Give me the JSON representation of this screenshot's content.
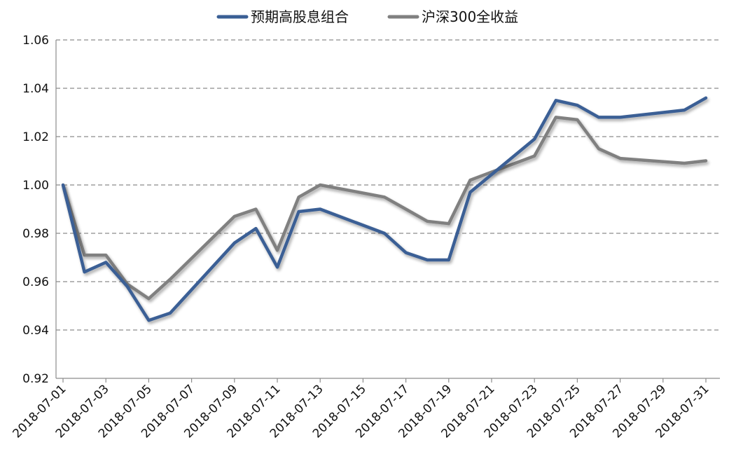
{
  "chart_data": {
    "type": "line",
    "title": "",
    "xlabel": "",
    "ylabel": "",
    "ylim": [
      0.92,
      1.06
    ],
    "yticks": [
      "0.92",
      "0.94",
      "0.96",
      "0.98",
      "1.00",
      "1.02",
      "1.04",
      "1.06"
    ],
    "x": [
      "2018-07-01",
      "2018-07-02",
      "2018-07-03",
      "2018-07-04",
      "2018-07-05",
      "2018-07-06",
      "2018-07-09",
      "2018-07-10",
      "2018-07-11",
      "2018-07-12",
      "2018-07-13",
      "2018-07-16",
      "2018-07-17",
      "2018-07-18",
      "2018-07-19",
      "2018-07-20",
      "2018-07-23",
      "2018-07-24",
      "2018-07-25",
      "2018-07-26",
      "2018-07-27",
      "2018-07-30",
      "2018-07-31"
    ],
    "xticks": [
      "2018-07-01",
      "2018-07-03",
      "2018-07-05",
      "2018-07-07",
      "2018-07-09",
      "2018-07-11",
      "2018-07-13",
      "2018-07-15",
      "2018-07-17",
      "2018-07-19",
      "2018-07-21",
      "2018-07-23",
      "2018-07-25",
      "2018-07-27",
      "2018-07-29",
      "2018-07-31"
    ],
    "grid": true,
    "legend_position": "top",
    "series": [
      {
        "name": "预期高股息组合",
        "color": "#3a5f95",
        "values": [
          1.0,
          0.964,
          0.968,
          0.958,
          0.944,
          0.947,
          0.976,
          0.982,
          0.966,
          0.989,
          0.99,
          0.98,
          0.972,
          0.969,
          0.969,
          0.997,
          1.019,
          1.035,
          1.033,
          1.028,
          1.028,
          1.031,
          1.036
        ]
      },
      {
        "name": "沪深300全收益",
        "color": "#808080",
        "values": [
          1.0,
          0.971,
          0.971,
          0.959,
          0.953,
          0.961,
          0.987,
          0.99,
          0.973,
          0.995,
          1.0,
          0.995,
          0.99,
          0.985,
          0.984,
          1.002,
          1.012,
          1.028,
          1.027,
          1.015,
          1.011,
          1.009,
          1.01
        ]
      }
    ]
  }
}
